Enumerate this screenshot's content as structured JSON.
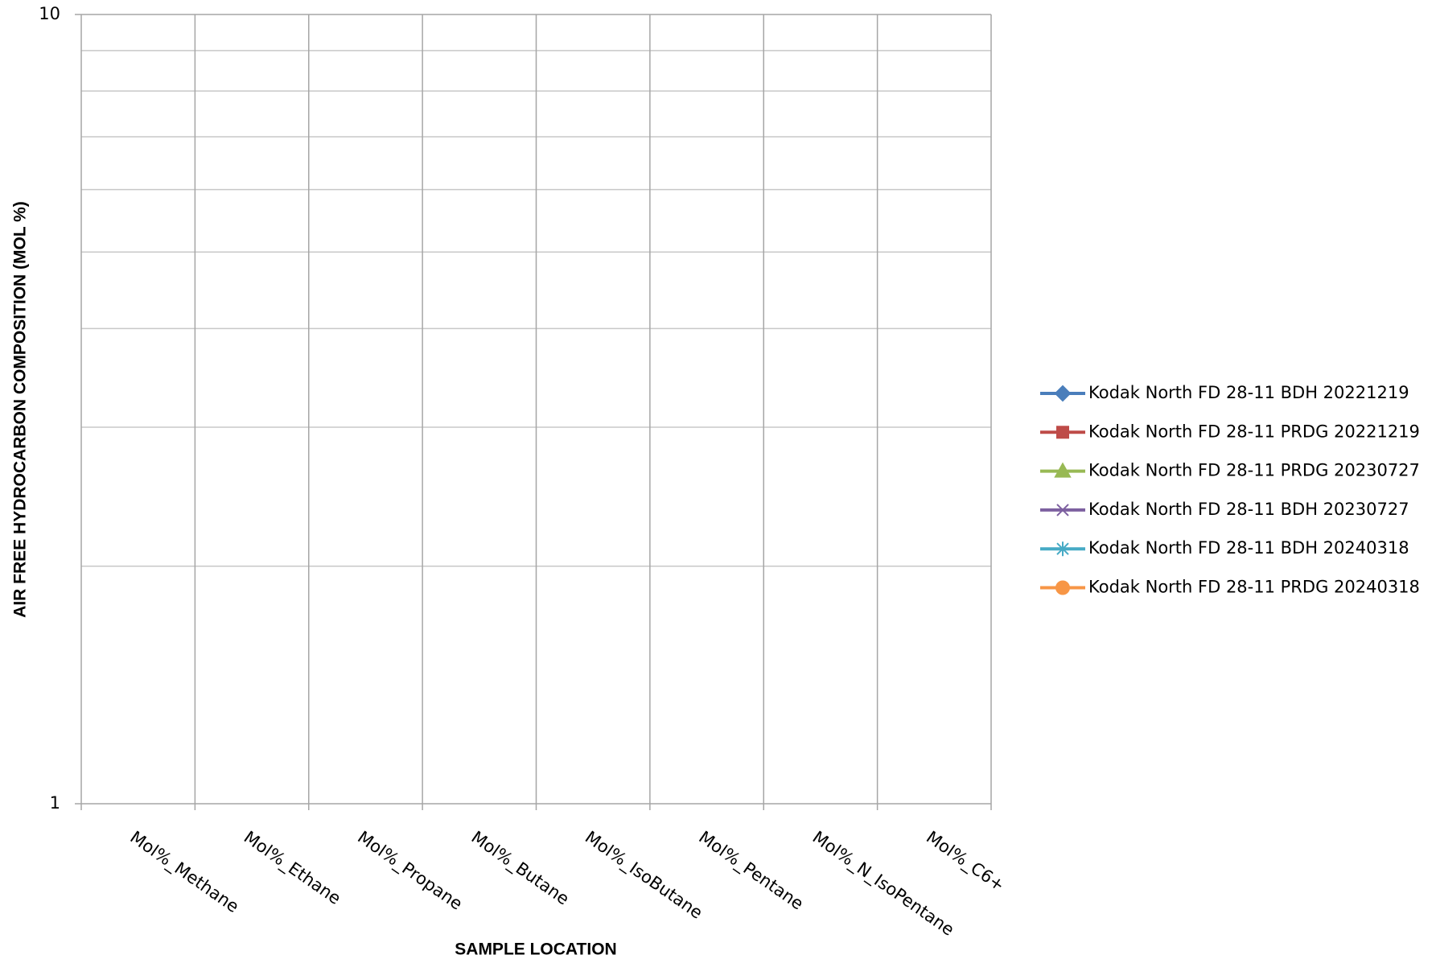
{
  "chart_data": {
    "type": "line",
    "categories": [
      "Mol%_Methane",
      "Mol%_Ethane",
      "Mol%_Propane",
      "Mol%_Butane",
      "Mol%_IsoButane",
      "Mol%_Pentane",
      "Mol%_N_IsoPentane",
      "Mol%_C6+"
    ],
    "series": [
      {
        "name": "Kodak North FD 28-11 BDH 20221219",
        "color": "#4a7ebb",
        "marker": "diamond",
        "values": [
          null,
          null,
          null,
          null,
          null,
          null,
          null,
          null
        ]
      },
      {
        "name": "Kodak North FD 28-11 PRDG 20221219",
        "color": "#be4b48",
        "marker": "square",
        "values": [
          null,
          null,
          null,
          null,
          null,
          null,
          null,
          null
        ]
      },
      {
        "name": "Kodak North FD 28-11 PRDG 20230727",
        "color": "#98b954",
        "marker": "triangle",
        "values": [
          null,
          null,
          null,
          null,
          null,
          null,
          null,
          null
        ]
      },
      {
        "name": "Kodak North FD 28-11 BDH 20230727",
        "color": "#7d60a0",
        "marker": "x",
        "values": [
          null,
          null,
          null,
          null,
          null,
          null,
          null,
          null
        ]
      },
      {
        "name": "Kodak North FD 28-11 BDH 20240318",
        "color": "#46aac5",
        "marker": "star",
        "values": [
          null,
          null,
          null,
          null,
          null,
          null,
          null,
          null
        ]
      },
      {
        "name": "Kodak North FD 28-11 PRDG 20240318",
        "color": "#f79646",
        "marker": "circle",
        "values": [
          null,
          null,
          null,
          null,
          null,
          null,
          null,
          null
        ]
      }
    ],
    "x_label": "SAMPLE LOCATION",
    "y_label": "AIR FREE HYDROCARBON COMPOSITION (MOL %)",
    "y_scale": "log",
    "ylim": [
      1,
      10
    ],
    "yticks": [
      1,
      10
    ],
    "minor_yticks": [
      2,
      3,
      4,
      5,
      6,
      7,
      8,
      9
    ],
    "grid": true,
    "legend": "right"
  }
}
